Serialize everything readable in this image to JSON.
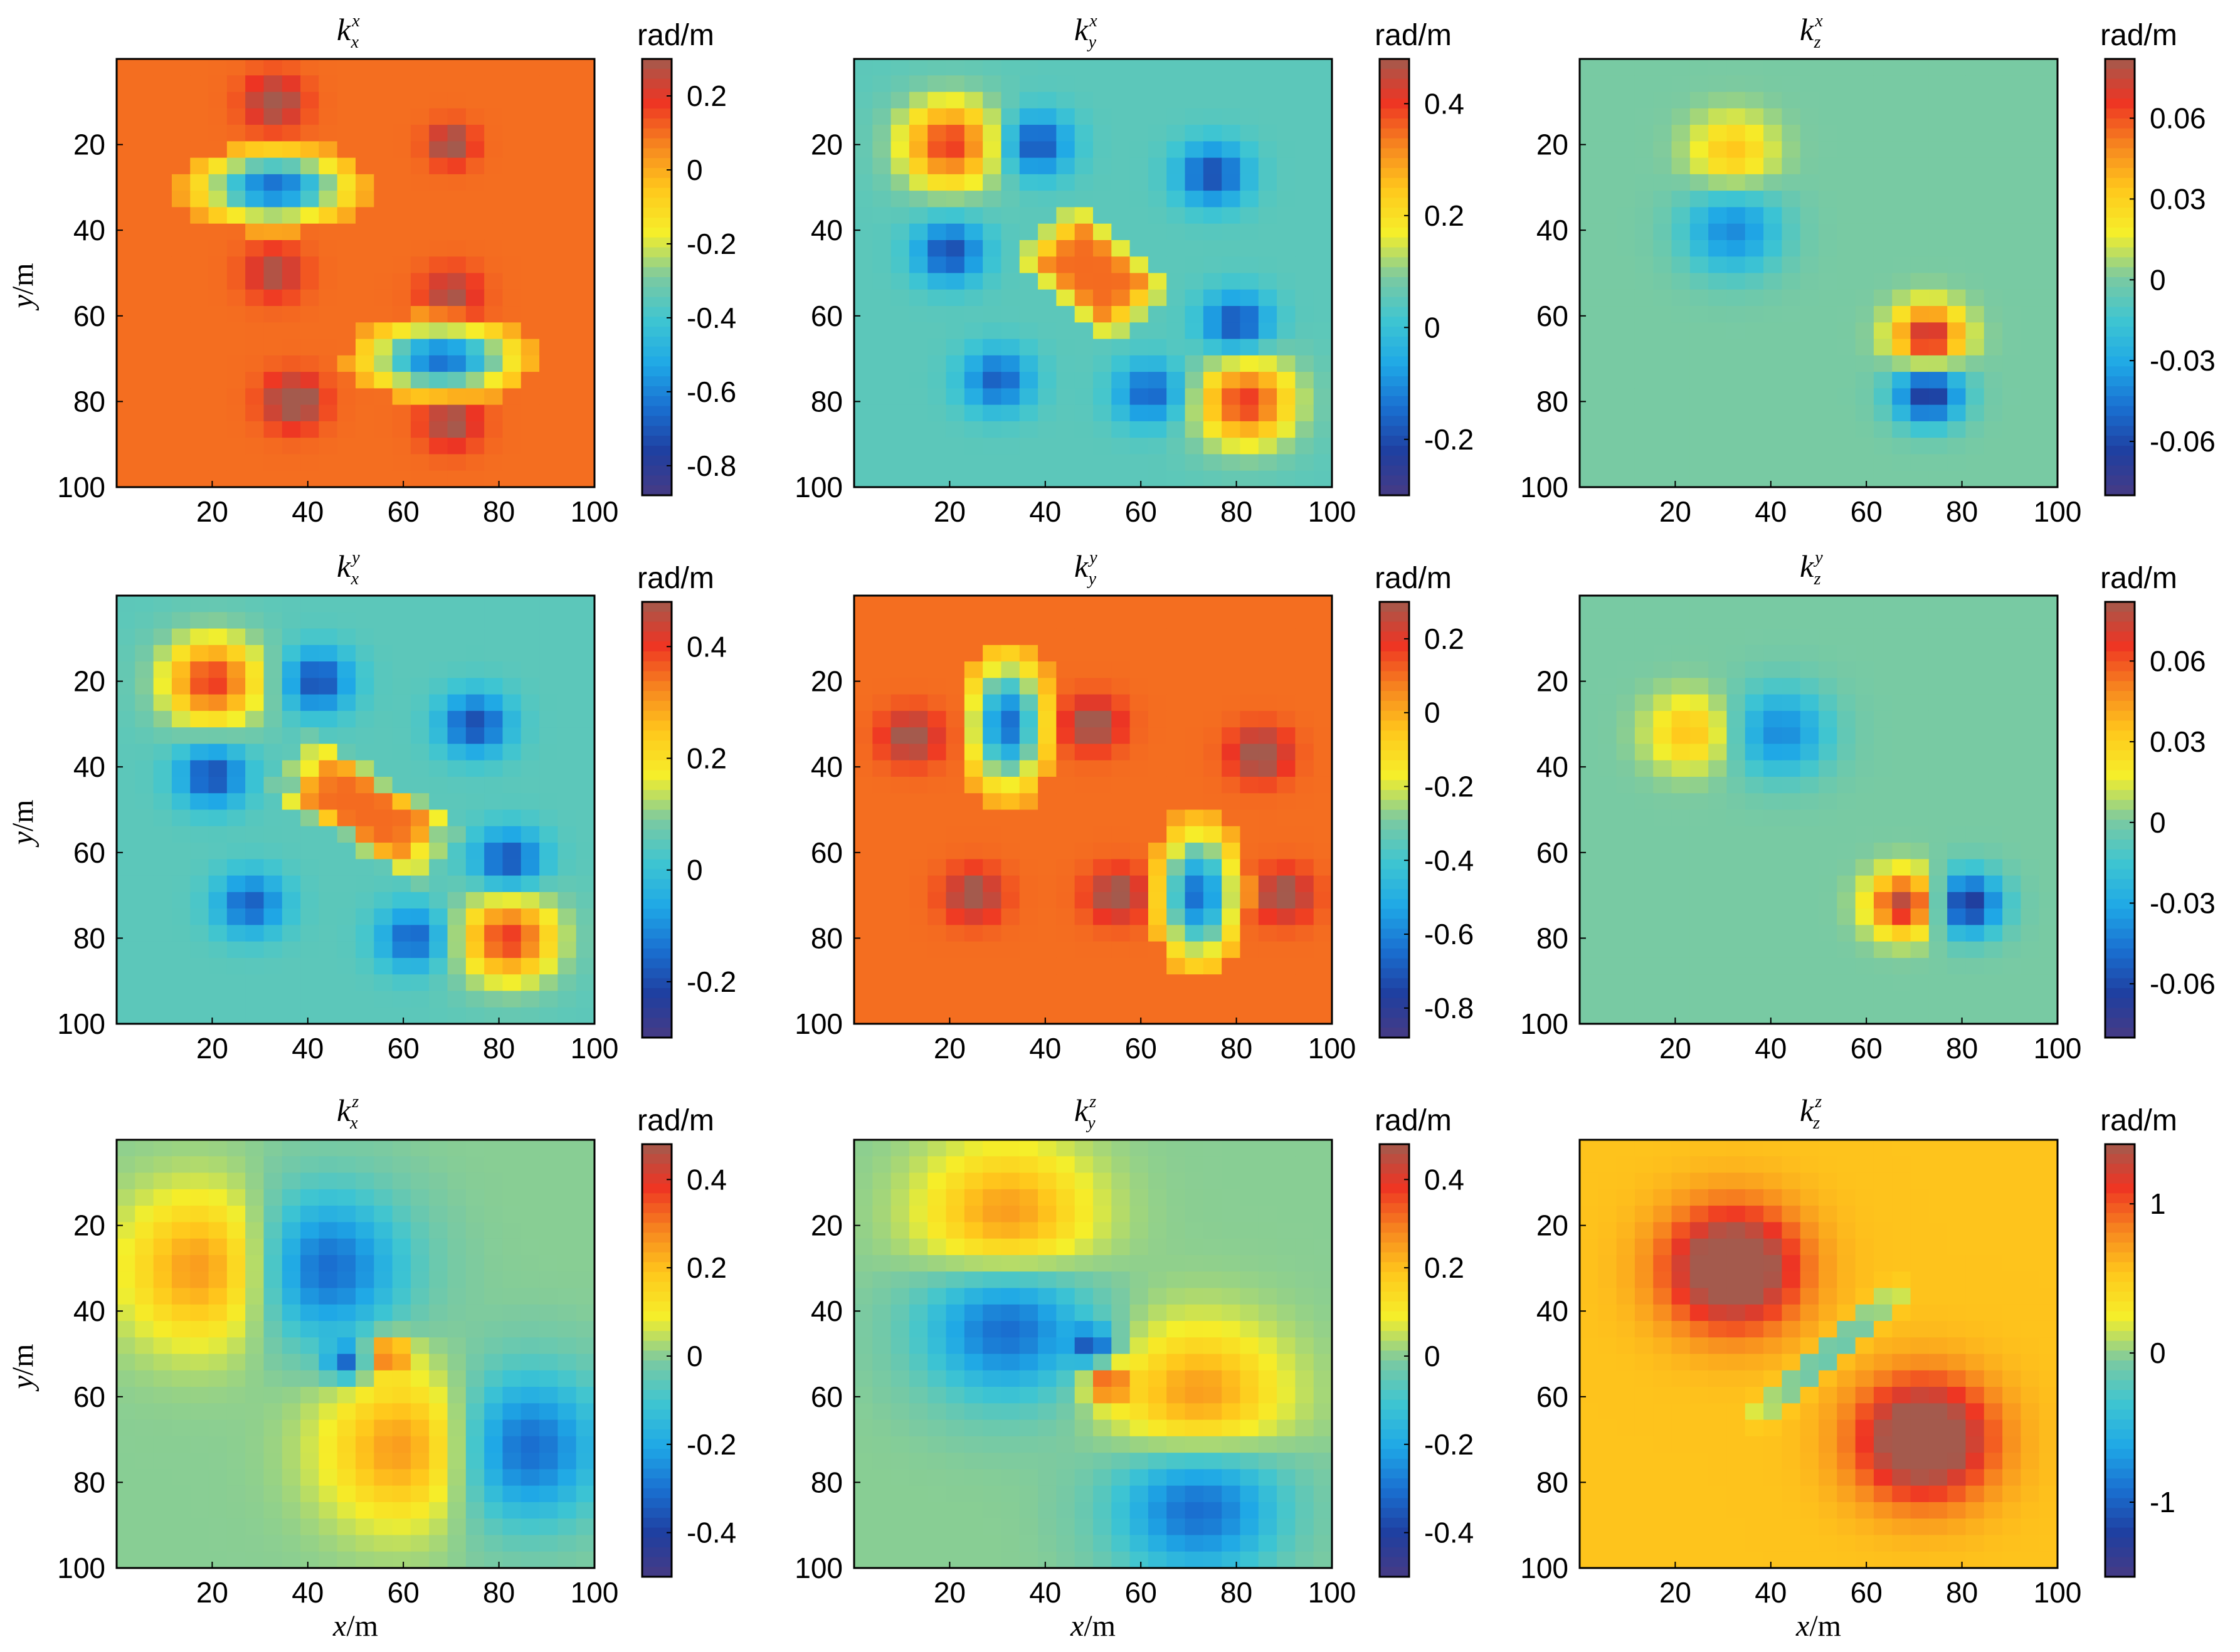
{
  "figure": {
    "colorbar_unit": "rad/m",
    "x_axis_label": "x/m",
    "y_axis_label": "y/m"
  },
  "colormap": [
    "#473a84",
    "#1f3fa0",
    "#1a6fd0",
    "#1fa8e6",
    "#3ec5d2",
    "#7ccaa0",
    "#f5ef2a",
    "#ffc81c",
    "#f7871f",
    "#ee3423",
    "#a45a4d"
  ],
  "chart_data": [
    {
      "type": "heatmap",
      "row": 0,
      "col": 0,
      "title_sym": "k",
      "title_sup": "x",
      "title_sub": "x",
      "xlim": [
        0,
        100
      ],
      "ylim": [
        0,
        100
      ],
      "y_reversed": true,
      "xticks": [
        "20",
        "40",
        "60",
        "80",
        "100"
      ],
      "yticks": [
        "20",
        "40",
        "60",
        "80",
        "100"
      ],
      "colorbar": {
        "unit": "rad/m",
        "range": [
          -0.88,
          0.3
        ],
        "ticks": [
          0.2,
          0,
          -0.2,
          -0.4,
          -0.6,
          -0.8
        ],
        "tick_labels": [
          "0.2",
          "0",
          "-0.2",
          "-0.4",
          "-0.6",
          "-0.8"
        ]
      },
      "features": [
        {
          "kind": "ring",
          "x": 33,
          "y": 30,
          "sx": 15,
          "sy": 8,
          "core": -0.65,
          "rim": 0.05
        },
        {
          "kind": "ring",
          "x": 68,
          "y": 70,
          "sx": 15,
          "sy": 8,
          "core": -0.65,
          "rim": 0.05
        },
        {
          "kind": "spot",
          "x": 33,
          "y": 10,
          "amp": 0.25,
          "s": 4
        },
        {
          "kind": "spot",
          "x": 70,
          "y": 20,
          "amp": 0.28,
          "s": 3
        },
        {
          "kind": "spot",
          "x": 33,
          "y": 50,
          "amp": 0.2,
          "s": 4
        },
        {
          "kind": "spot",
          "x": 70,
          "y": 55,
          "amp": 0.2,
          "s": 4
        },
        {
          "kind": "spot",
          "x": 37,
          "y": 80,
          "amp": 0.3,
          "s": 4
        },
        {
          "kind": "spot",
          "x": 70,
          "y": 85,
          "amp": 0.22,
          "s": 4
        }
      ],
      "background": 0.1
    },
    {
      "type": "heatmap",
      "row": 0,
      "col": 1,
      "title_sym": "k",
      "title_sup": "x",
      "title_sub": "y",
      "xlim": [
        0,
        100
      ],
      "ylim": [
        0,
        100
      ],
      "y_reversed": true,
      "xticks": [
        "20",
        "40",
        "60",
        "80",
        "100"
      ],
      "yticks": [
        "20",
        "40",
        "60",
        "80",
        "100"
      ],
      "colorbar": {
        "unit": "rad/m",
        "range": [
          -0.3,
          0.48
        ],
        "ticks": [
          0.4,
          0.2,
          0,
          -0.2
        ],
        "tick_labels": [
          "0.4",
          "0.2",
          "0",
          "-0.2"
        ]
      },
      "features": [
        {
          "kind": "diamond",
          "x": 50,
          "y": 50,
          "r": 18,
          "val": 0.35
        },
        {
          "kind": "spot",
          "x": 20,
          "y": 20,
          "amp": 0.35,
          "s": 7
        },
        {
          "kind": "spot",
          "x": 82,
          "y": 80,
          "amp": 0.35,
          "s": 7
        },
        {
          "kind": "spot",
          "x": 38,
          "y": 20,
          "amp": -0.25,
          "s": 5
        },
        {
          "kind": "spot",
          "x": 20,
          "y": 45,
          "amp": -0.25,
          "s": 5
        },
        {
          "kind": "spot",
          "x": 75,
          "y": 27,
          "amp": -0.25,
          "s": 5
        },
        {
          "kind": "spot",
          "x": 80,
          "y": 62,
          "amp": -0.25,
          "s": 5
        },
        {
          "kind": "spot",
          "x": 30,
          "y": 75,
          "amp": -0.22,
          "s": 5
        },
        {
          "kind": "spot",
          "x": 62,
          "y": 78,
          "amp": -0.22,
          "s": 5
        }
      ],
      "background": 0.05
    },
    {
      "type": "heatmap",
      "row": 0,
      "col": 2,
      "title_sym": "k",
      "title_sup": "x",
      "title_sub": "z",
      "xlim": [
        0,
        100
      ],
      "ylim": [
        0,
        100
      ],
      "y_reversed": true,
      "xticks": [
        "20",
        "40",
        "60",
        "80",
        "100"
      ],
      "yticks": [
        "20",
        "40",
        "60",
        "80",
        "100"
      ],
      "colorbar": {
        "unit": "rad/m",
        "range": [
          -0.08,
          0.082
        ],
        "ticks": [
          0.06,
          0.03,
          0,
          -0.03,
          -0.06
        ],
        "tick_labels": [
          "0.06",
          "0.03",
          "0",
          "-0.03",
          "-0.06"
        ]
      },
      "features": [
        {
          "kind": "spot",
          "x": 32,
          "y": 22,
          "amp": 0.035,
          "s": 6
        },
        {
          "kind": "spot",
          "x": 32,
          "y": 40,
          "amp": -0.04,
          "s": 7
        },
        {
          "kind": "spot",
          "x": 73,
          "y": 65,
          "amp": 0.08,
          "s": 5
        },
        {
          "kind": "spot",
          "x": 73,
          "y": 78,
          "amp": -0.07,
          "s": 5
        }
      ],
      "background": 0
    },
    {
      "type": "heatmap",
      "row": 1,
      "col": 0,
      "title_sym": "k",
      "title_sup": "y",
      "title_sub": "x",
      "xlim": [
        0,
        100
      ],
      "ylim": [
        0,
        100
      ],
      "y_reversed": true,
      "xticks": [
        "20",
        "40",
        "60",
        "80",
        "100"
      ],
      "yticks": [
        "20",
        "40",
        "60",
        "80",
        "100"
      ],
      "colorbar": {
        "unit": "rad/m",
        "range": [
          -0.3,
          0.48
        ],
        "ticks": [
          0.4,
          0.2,
          0,
          -0.2
        ],
        "tick_labels": [
          "0.4",
          "0.2",
          "0",
          "-0.2"
        ]
      },
      "features": [
        {
          "kind": "diamond",
          "x": 52,
          "y": 50,
          "r": 20,
          "val": 0.35,
          "skew": 0.7
        },
        {
          "kind": "spot",
          "x": 20,
          "y": 20,
          "amp": 0.35,
          "s": 7
        },
        {
          "kind": "spot",
          "x": 82,
          "y": 80,
          "amp": 0.35,
          "s": 7
        },
        {
          "kind": "spot",
          "x": 42,
          "y": 20,
          "amp": -0.25,
          "s": 5
        },
        {
          "kind": "spot",
          "x": 20,
          "y": 42,
          "amp": -0.25,
          "s": 5
        },
        {
          "kind": "spot",
          "x": 75,
          "y": 30,
          "amp": -0.25,
          "s": 5
        },
        {
          "kind": "spot",
          "x": 82,
          "y": 62,
          "amp": -0.25,
          "s": 5
        },
        {
          "kind": "spot",
          "x": 28,
          "y": 72,
          "amp": -0.22,
          "s": 5
        },
        {
          "kind": "spot",
          "x": 62,
          "y": 80,
          "amp": -0.22,
          "s": 5
        }
      ],
      "background": 0.05
    },
    {
      "type": "heatmap",
      "row": 1,
      "col": 1,
      "title_sym": "k",
      "title_sup": "y",
      "title_sub": "y",
      "xlim": [
        0,
        100
      ],
      "ylim": [
        0,
        100
      ],
      "y_reversed": true,
      "xticks": [
        "20",
        "40",
        "60",
        "80",
        "100"
      ],
      "yticks": [
        "20",
        "40",
        "60",
        "80",
        "100"
      ],
      "colorbar": {
        "unit": "rad/m",
        "range": [
          -0.88,
          0.3
        ],
        "ticks": [
          0.2,
          0,
          -0.2,
          -0.4,
          -0.6,
          -0.8
        ],
        "tick_labels": [
          "0.2",
          "0",
          "-0.2",
          "-0.4",
          "-0.6",
          "-0.8"
        ]
      },
      "features": [
        {
          "kind": "ring",
          "x": 32,
          "y": 30,
          "sx": 8,
          "sy": 15,
          "core": -0.65,
          "rim": 0.05
        },
        {
          "kind": "ring",
          "x": 72,
          "y": 70,
          "sx": 8,
          "sy": 15,
          "core": -0.65,
          "rim": 0.05
        },
        {
          "kind": "spot",
          "x": 12,
          "y": 33,
          "amp": 0.25,
          "s": 4
        },
        {
          "kind": "spot",
          "x": 50,
          "y": 30,
          "amp": 0.25,
          "s": 4
        },
        {
          "kind": "spot",
          "x": 85,
          "y": 37,
          "amp": 0.28,
          "s": 4
        },
        {
          "kind": "spot",
          "x": 55,
          "y": 70,
          "amp": 0.25,
          "s": 4
        },
        {
          "kind": "spot",
          "x": 25,
          "y": 70,
          "amp": 0.25,
          "s": 4
        },
        {
          "kind": "spot",
          "x": 90,
          "y": 70,
          "amp": 0.25,
          "s": 4
        }
      ],
      "background": 0.1
    },
    {
      "type": "heatmap",
      "row": 1,
      "col": 2,
      "title_sym": "k",
      "title_sup": "y",
      "title_sub": "z",
      "xlim": [
        0,
        100
      ],
      "ylim": [
        0,
        100
      ],
      "y_reversed": true,
      "xticks": [
        "20",
        "40",
        "60",
        "80",
        "100"
      ],
      "yticks": [
        "20",
        "40",
        "60",
        "80",
        "100"
      ],
      "colorbar": {
        "unit": "rad/m",
        "range": [
          -0.08,
          0.082
        ],
        "ticks": [
          0.06,
          0.03,
          0,
          -0.03,
          -0.06
        ],
        "tick_labels": [
          "0.06",
          "0.03",
          "0",
          "-0.03",
          "-0.06"
        ]
      },
      "features": [
        {
          "kind": "spot",
          "x": 23,
          "y": 32,
          "amp": 0.035,
          "s": 6
        },
        {
          "kind": "spot",
          "x": 42,
          "y": 32,
          "amp": -0.04,
          "s": 7
        },
        {
          "kind": "spot",
          "x": 68,
          "y": 72,
          "amp": 0.08,
          "s": 5
        },
        {
          "kind": "spot",
          "x": 81,
          "y": 72,
          "amp": -0.07,
          "s": 5
        }
      ],
      "background": 0
    },
    {
      "type": "heatmap",
      "row": 2,
      "col": 0,
      "title_sym": "k",
      "title_sup": "z",
      "title_sub": "x",
      "xlim": [
        0,
        100
      ],
      "ylim": [
        0,
        100
      ],
      "y_reversed": true,
      "xticks": [
        "20",
        "40",
        "60",
        "80",
        "100"
      ],
      "yticks": [
        "20",
        "40",
        "60",
        "80",
        "100"
      ],
      "colorbar": {
        "unit": "rad/m",
        "range": [
          -0.5,
          0.48
        ],
        "ticks": [
          0.4,
          0.2,
          0,
          -0.2,
          -0.4
        ],
        "tick_labels": [
          "0.4",
          "0.2",
          "0",
          "-0.2",
          "-0.4"
        ]
      },
      "features": [
        {
          "kind": "spot",
          "x": 20,
          "y": 30,
          "amp": 0.3,
          "s": 12
        },
        {
          "kind": "spot",
          "x": 42,
          "y": 30,
          "amp": -0.35,
          "s": 12
        },
        {
          "kind": "spot",
          "x": 62,
          "y": 72,
          "amp": 0.3,
          "s": 12
        },
        {
          "kind": "spot",
          "x": 84,
          "y": 72,
          "amp": -0.35,
          "s": 12
        },
        {
          "kind": "spot",
          "x": 48,
          "y": 52,
          "amp": -0.3,
          "s": 3
        },
        {
          "kind": "spot",
          "x": 57,
          "y": 50,
          "amp": 0.35,
          "s": 3
        }
      ],
      "background": 0
    },
    {
      "type": "heatmap",
      "row": 2,
      "col": 1,
      "title_sym": "k",
      "title_sup": "z",
      "title_sub": "y",
      "xlim": [
        0,
        100
      ],
      "ylim": [
        0,
        100
      ],
      "y_reversed": true,
      "xticks": [
        "20",
        "40",
        "60",
        "80",
        "100"
      ],
      "yticks": [
        "20",
        "40",
        "60",
        "80",
        "100"
      ],
      "colorbar": {
        "unit": "rad/m",
        "range": [
          -0.5,
          0.48
        ],
        "ticks": [
          0.4,
          0.2,
          0,
          -0.2,
          -0.4
        ],
        "tick_labels": [
          "0.4",
          "0.2",
          "0",
          "-0.2",
          "-0.4"
        ]
      },
      "features": [
        {
          "kind": "spot",
          "x": 32,
          "y": 20,
          "amp": 0.3,
          "s": 12
        },
        {
          "kind": "spot",
          "x": 32,
          "y": 42,
          "amp": -0.35,
          "s": 12
        },
        {
          "kind": "spot",
          "x": 72,
          "y": 62,
          "amp": 0.3,
          "s": 12
        },
        {
          "kind": "spot",
          "x": 72,
          "y": 84,
          "amp": -0.35,
          "s": 12
        },
        {
          "kind": "spot",
          "x": 50,
          "y": 48,
          "amp": -0.3,
          "s": 3
        },
        {
          "kind": "spot",
          "x": 53,
          "y": 57,
          "amp": 0.35,
          "s": 3
        }
      ],
      "background": 0
    },
    {
      "type": "heatmap",
      "row": 2,
      "col": 2,
      "title_sym": "k",
      "title_sup": "z",
      "title_sub": "z",
      "xlim": [
        0,
        100
      ],
      "ylim": [
        0,
        100
      ],
      "y_reversed": true,
      "xticks": [
        "20",
        "40",
        "60",
        "80",
        "100"
      ],
      "yticks": [
        "20",
        "40",
        "60",
        "80",
        "100"
      ],
      "colorbar": {
        "unit": "rad/m",
        "range": [
          -1.5,
          1.4
        ],
        "ticks": [
          1,
          0,
          -1
        ],
        "tick_labels": [
          "1",
          "0",
          "-1"
        ]
      },
      "features": [
        {
          "kind": "spot",
          "x": 32,
          "y": 30,
          "amp": 1.2,
          "s": 10
        },
        {
          "kind": "spot",
          "x": 72,
          "y": 70,
          "amp": 1.2,
          "s": 10
        },
        {
          "kind": "line",
          "x1": 38,
          "y1": 64,
          "x2": 66,
          "y2": 36,
          "amp": -1.0,
          "w": 1.6
        }
      ],
      "background": 0.55
    }
  ]
}
